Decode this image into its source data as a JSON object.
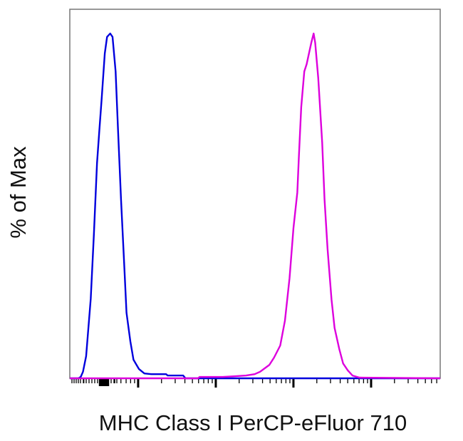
{
  "chart_data": {
    "type": "line",
    "title": "",
    "xlabel": "MHC Class I PerCP-eFluor 710",
    "ylabel": "% of Max",
    "x_scale": "log (biexponential), log10 decade units, tick labels not shown",
    "xlim": [
      2.12,
      6.89
    ],
    "ylim": [
      0,
      100
    ],
    "major_ticks": [
      3,
      4,
      5,
      6
    ],
    "grid": false,
    "legend": "none",
    "series": [
      {
        "color": "#0000dd",
        "points": [
          [
            2.12,
            0
          ],
          [
            2.23,
            0
          ],
          [
            2.26,
            0.4
          ],
          [
            2.29,
            1.9
          ],
          [
            2.33,
            6.4
          ],
          [
            2.39,
            23.1
          ],
          [
            2.43,
            41.7
          ],
          [
            2.47,
            62.4
          ],
          [
            2.5,
            71.7
          ],
          [
            2.53,
            81.0
          ],
          [
            2.57,
            94.2
          ],
          [
            2.6,
            99.0
          ],
          [
            2.64,
            100
          ],
          [
            2.67,
            99.0
          ],
          [
            2.71,
            89.0
          ],
          [
            2.74,
            72.5
          ],
          [
            2.78,
            51.9
          ],
          [
            2.82,
            33.3
          ],
          [
            2.85,
            19.0
          ],
          [
            2.9,
            10.7
          ],
          [
            2.94,
            5.4
          ],
          [
            3.01,
            2.7
          ],
          [
            3.08,
            1.4
          ],
          [
            3.17,
            1.2
          ],
          [
            3.36,
            1.2
          ],
          [
            3.38,
            0.8
          ],
          [
            3.58,
            0.8
          ],
          [
            3.61,
            0
          ],
          [
            6.89,
            0
          ]
        ]
      },
      {
        "color": "#dd00dd",
        "points": [
          [
            2.12,
            0
          ],
          [
            3.77,
            0
          ],
          [
            3.79,
            0.4
          ],
          [
            4.09,
            0.4
          ],
          [
            4.25,
            0.6
          ],
          [
            4.39,
            0.8
          ],
          [
            4.5,
            1.2
          ],
          [
            4.57,
            1.9
          ],
          [
            4.63,
            2.9
          ],
          [
            4.69,
            3.9
          ],
          [
            4.75,
            6.0
          ],
          [
            4.83,
            9.5
          ],
          [
            4.89,
            16.7
          ],
          [
            4.95,
            29.1
          ],
          [
            5.0,
            43.6
          ],
          [
            5.05,
            53.9
          ],
          [
            5.07,
            64.3
          ],
          [
            5.1,
            78.7
          ],
          [
            5.14,
            89.0
          ],
          [
            5.17,
            91.1
          ],
          [
            5.19,
            93.2
          ],
          [
            5.23,
            97.3
          ],
          [
            5.26,
            100
          ],
          [
            5.28,
            97.3
          ],
          [
            5.32,
            87.0
          ],
          [
            5.37,
            68.4
          ],
          [
            5.4,
            51.9
          ],
          [
            5.44,
            37.4
          ],
          [
            5.49,
            22.9
          ],
          [
            5.53,
            14.6
          ],
          [
            5.59,
            8.5
          ],
          [
            5.64,
            4.3
          ],
          [
            5.7,
            2.3
          ],
          [
            5.76,
            0.8
          ],
          [
            5.85,
            0.2
          ],
          [
            6.89,
            0
          ]
        ]
      }
    ]
  }
}
